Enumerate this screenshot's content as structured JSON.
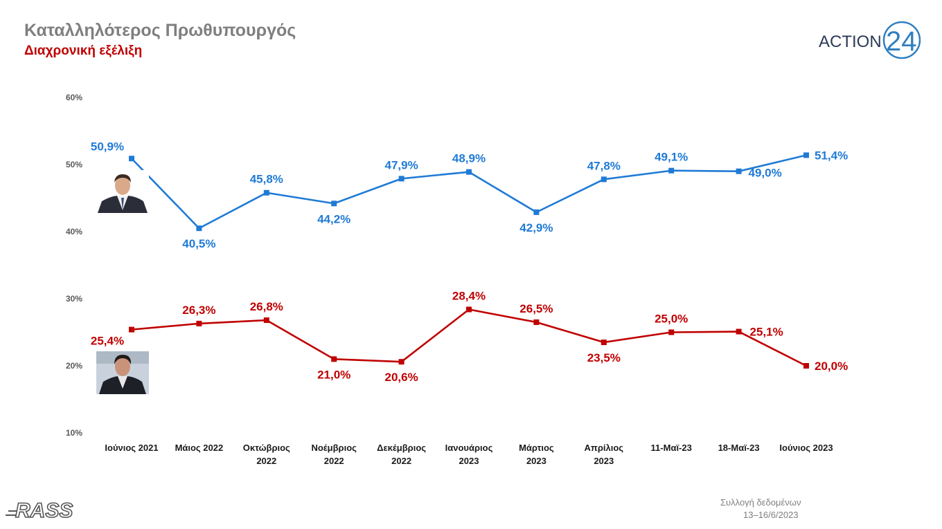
{
  "header": {
    "title": "Καταλληλότερος Πρωθυπουργός",
    "subtitle": "Διαχρονική εξέλιξη"
  },
  "logo": {
    "text": "ACTION",
    "number": "24",
    "color": "#2f7fc1"
  },
  "footer": {
    "brand": "RASS",
    "label": "Συλλογή δεδομένων",
    "date": "13–16/6/2023"
  },
  "chart_data": {
    "type": "line",
    "title": "Καταλληλότερος Πρωθυπουργός",
    "subtitle": "Διαχρονική εξέλιξη",
    "xlabel": "",
    "ylabel": "",
    "ylim": [
      10,
      60
    ],
    "yticks": [
      "60%",
      "50%",
      "40%",
      "30%",
      "20%",
      "10%"
    ],
    "ytick_values": [
      60,
      50,
      40,
      30,
      20,
      10
    ],
    "grid": false,
    "legend": "none",
    "categories": [
      [
        "Ιούνιος 2021"
      ],
      [
        "Μάιος 2022"
      ],
      [
        "Οκτώβριος",
        "2022"
      ],
      [
        "Νοέμβριος",
        "2022"
      ],
      [
        "Δεκέμβριος",
        "2022"
      ],
      [
        "Ιανουάριος",
        "2023"
      ],
      [
        "Μάρτιος",
        "2023"
      ],
      [
        "Απρίλιος",
        "2023"
      ],
      [
        "11-Μαϊ-23"
      ],
      [
        "18-Μαϊ-23"
      ],
      [
        "Ιούνιος 2023"
      ]
    ],
    "series": [
      {
        "color": "#1f7ad6",
        "marker_icon": "portrait-mitsotakis-icon",
        "values": [
          50.9,
          40.5,
          45.8,
          44.2,
          47.9,
          48.9,
          42.9,
          47.8,
          49.1,
          49.0,
          51.4
        ],
        "labels": [
          "50,9%",
          "40,5%",
          "45,8%",
          "44,2%",
          "47,9%",
          "48,9%",
          "42,9%",
          "47,8%",
          "49,1%",
          "49,0%",
          "51,4%"
        ]
      },
      {
        "color": "#c00000",
        "marker_icon": "portrait-tsipras-icon",
        "values": [
          25.4,
          26.3,
          26.8,
          21.0,
          20.6,
          28.4,
          26.5,
          23.5,
          25.0,
          25.1,
          20.0
        ],
        "labels": [
          "25,4%",
          "26,3%",
          "26,8%",
          "21,0%",
          "20,6%",
          "28,4%",
          "26,5%",
          "23,5%",
          "25,0%",
          "25,1%",
          "20,0%"
        ]
      }
    ]
  }
}
